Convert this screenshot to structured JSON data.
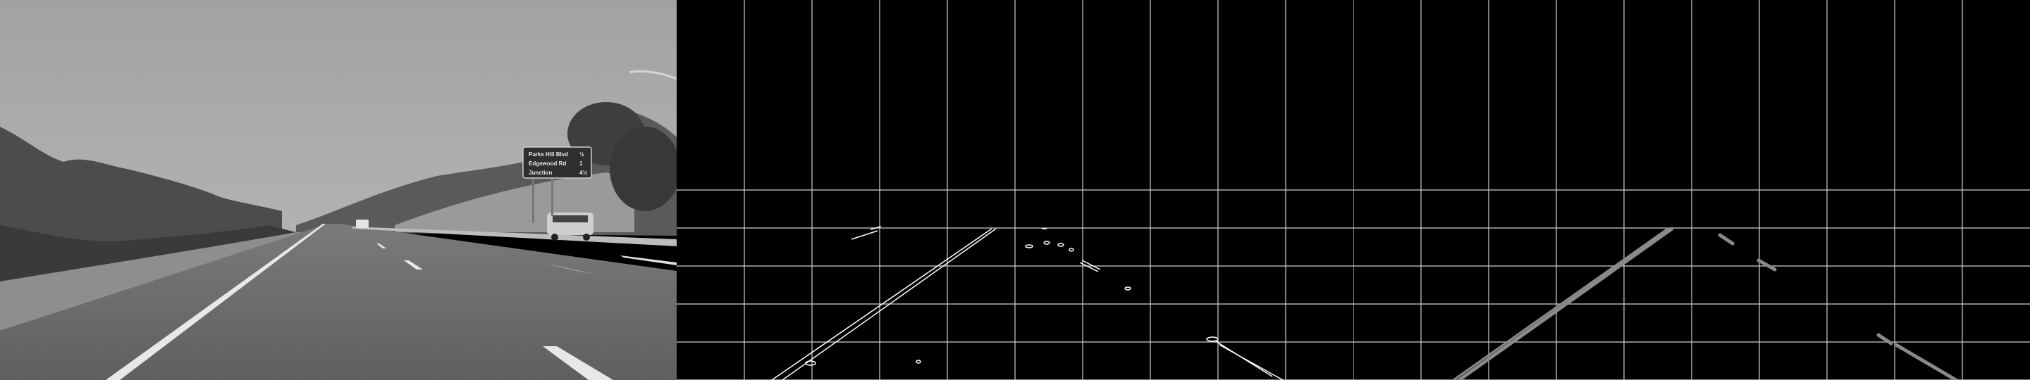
{
  "panels": [
    {
      "id": "photo",
      "description_kind": "grayscale road photograph"
    },
    {
      "id": "edges",
      "description_kind": "canny edge map with grid"
    },
    {
      "id": "lanes",
      "description_kind": "hough line segments with grid"
    }
  ],
  "road_sign": {
    "rows": [
      {
        "name": "Parks Hill Blvd",
        "dist": "½"
      },
      {
        "name": "Edgewood Rd",
        "dist": "1"
      },
      {
        "name": "Junction",
        "dist": "4½"
      }
    ]
  },
  "colors": {
    "sky": "#a9a9a9",
    "road": "#6f6f6f",
    "grid": "#d0d0d0",
    "edge": "#ffffff",
    "lane_segment": "#8a8a8a"
  }
}
